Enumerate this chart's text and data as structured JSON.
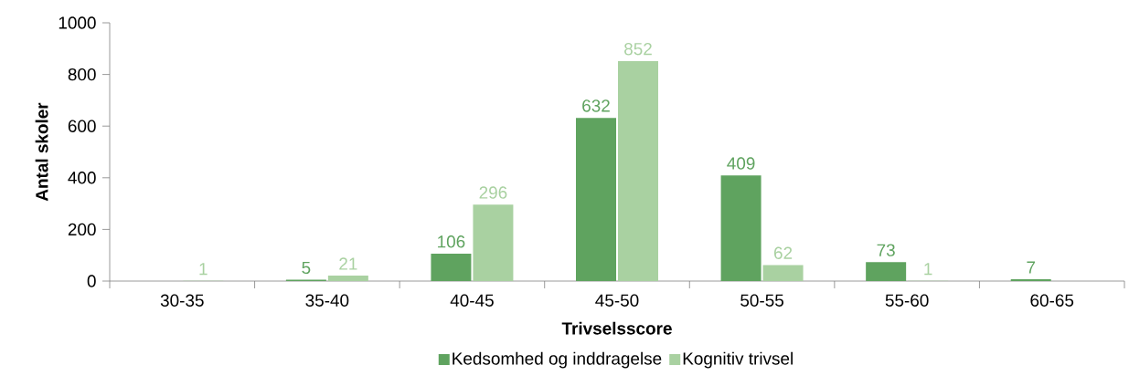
{
  "chart_data": {
    "type": "bar",
    "xlabel": "Trivselsscore",
    "ylabel": "Antal skoler",
    "categories": [
      "30-35",
      "35-40",
      "40-45",
      "45-50",
      "50-55",
      "55-60",
      "60-65"
    ],
    "series": [
      {
        "name": "Kedsomhed og inddragelse",
        "color": "#5fa35f",
        "values": [
          null,
          5,
          106,
          632,
          409,
          73,
          7
        ]
      },
      {
        "name": "Kognitiv trivsel",
        "color": "#a9d1a1",
        "values": [
          1,
          21,
          296,
          852,
          62,
          1,
          null
        ]
      }
    ],
    "ylim": [
      0,
      1000
    ],
    "yticks": [
      0,
      200,
      400,
      600,
      800,
      1000
    ],
    "data_labels": true,
    "legend": "bottom",
    "grid": false
  }
}
